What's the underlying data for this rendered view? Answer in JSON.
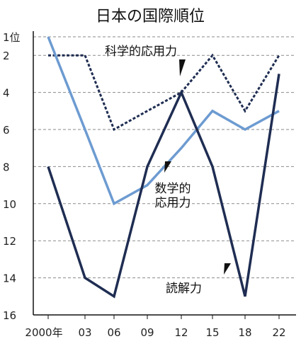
{
  "chart_data": {
    "type": "line",
    "title": "日本の国際順位",
    "x": [
      "2000",
      "03",
      "06",
      "09",
      "12",
      "15",
      "18",
      "22"
    ],
    "x_tick_labels": [
      "2000年",
      "03",
      "06",
      "09",
      "12",
      "15",
      "18",
      "22"
    ],
    "y_tick_labels": [
      "1位",
      "2",
      "4",
      "6",
      "8",
      "10",
      "12",
      "14",
      "16"
    ],
    "y_ticks": [
      1,
      2,
      4,
      6,
      8,
      10,
      12,
      14,
      16
    ],
    "ylim": [
      16,
      1
    ],
    "y_inverted": true,
    "grid": "horizontal dashed",
    "series": [
      {
        "name": "科学的応用力",
        "values": [
          2,
          2,
          6,
          5,
          4,
          2,
          5,
          2
        ],
        "color": "#1f2d52",
        "style": "dotted"
      },
      {
        "name": "数学的応用力",
        "values": [
          1,
          6,
          10,
          9,
          7,
          5,
          6,
          5
        ],
        "color": "#6d9bd1",
        "style": "solid"
      },
      {
        "name": "読解力",
        "values": [
          8,
          14,
          15,
          8,
          4,
          8,
          15,
          3
        ],
        "color": "#1f2d52",
        "style": "solid"
      }
    ],
    "annotations": [
      {
        "series": 0,
        "lines": [
          "科学的応用力"
        ]
      },
      {
        "series": 1,
        "lines": [
          "数学的",
          "応用力"
        ]
      },
      {
        "series": 2,
        "lines": [
          "読解力"
        ]
      }
    ]
  }
}
